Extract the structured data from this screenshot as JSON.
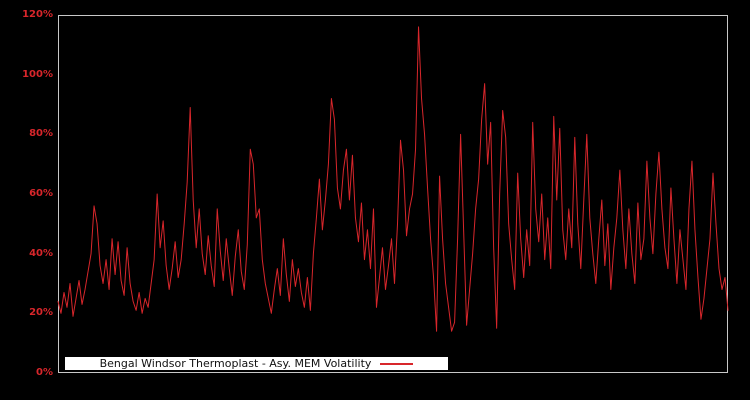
{
  "window": {
    "background_color": "#000000",
    "plot_border_color": "#c8c8c8",
    "accent_red": "#d8262b"
  },
  "legend": {
    "label": "Bengal Windsor Thermoplast - Asy. MEM Volatility",
    "line_sample_color": "#d8262b",
    "background": "#ffffff"
  },
  "chart_data": {
    "type": "line",
    "title": "",
    "xlabel": "",
    "ylabel": "",
    "unit": "percent",
    "ylim": [
      0,
      120
    ],
    "yticks": [
      "0%",
      "20%",
      "40%",
      "60%",
      "80%",
      "100%",
      "120%"
    ],
    "grid": "off",
    "legend_position": "bottom-inside-left",
    "tick_label_color": "#d8262b",
    "series": [
      {
        "name": "Bengal Windsor Thermoplast - Asy. MEM Volatility",
        "color": "#d8262b",
        "values": [
          24,
          20,
          27,
          22,
          30,
          19,
          25,
          31,
          23,
          28,
          34,
          40,
          56,
          50,
          36,
          30,
          38,
          28,
          45,
          33,
          44,
          31,
          26,
          42,
          30,
          24,
          21,
          27,
          20,
          25,
          22,
          30,
          38,
          60,
          42,
          51,
          36,
          28,
          35,
          44,
          32,
          38,
          50,
          64,
          89,
          58,
          42,
          55,
          40,
          33,
          46,
          36,
          29,
          55,
          41,
          31,
          45,
          35,
          26,
          39,
          48,
          34,
          28,
          43,
          75,
          70,
          52,
          55,
          38,
          30,
          25,
          20,
          28,
          35,
          26,
          45,
          33,
          24,
          38,
          29,
          35,
          27,
          22,
          32,
          21,
          40,
          52,
          65,
          48,
          58,
          70,
          92,
          85,
          62,
          55,
          68,
          75,
          58,
          73,
          52,
          44,
          57,
          38,
          48,
          35,
          55,
          22,
          32,
          42,
          28,
          36,
          45,
          30,
          50,
          78,
          68,
          46,
          55,
          60,
          75,
          116,
          92,
          80,
          62,
          45,
          32,
          14,
          66,
          45,
          30,
          22,
          14,
          17,
          45,
          80,
          48,
          16,
          28,
          40,
          55,
          65,
          85,
          97,
          70,
          84,
          42,
          15,
          60,
          88,
          79,
          50,
          38,
          28,
          67,
          45,
          32,
          48,
          36,
          84,
          55,
          44,
          60,
          38,
          52,
          35,
          86,
          58,
          82,
          48,
          38,
          55,
          42,
          79,
          50,
          35,
          58,
          80,
          52,
          40,
          30,
          45,
          58,
          36,
          50,
          28,
          42,
          52,
          68,
          48,
          35,
          55,
          40,
          30,
          57,
          38,
          45,
          71,
          52,
          40,
          60,
          74,
          55,
          42,
          35,
          62,
          45,
          30,
          48,
          38,
          28,
          55,
          71,
          48,
          32,
          18,
          25,
          35,
          45,
          67,
          50,
          35,
          28,
          32,
          21
        ]
      }
    ]
  }
}
